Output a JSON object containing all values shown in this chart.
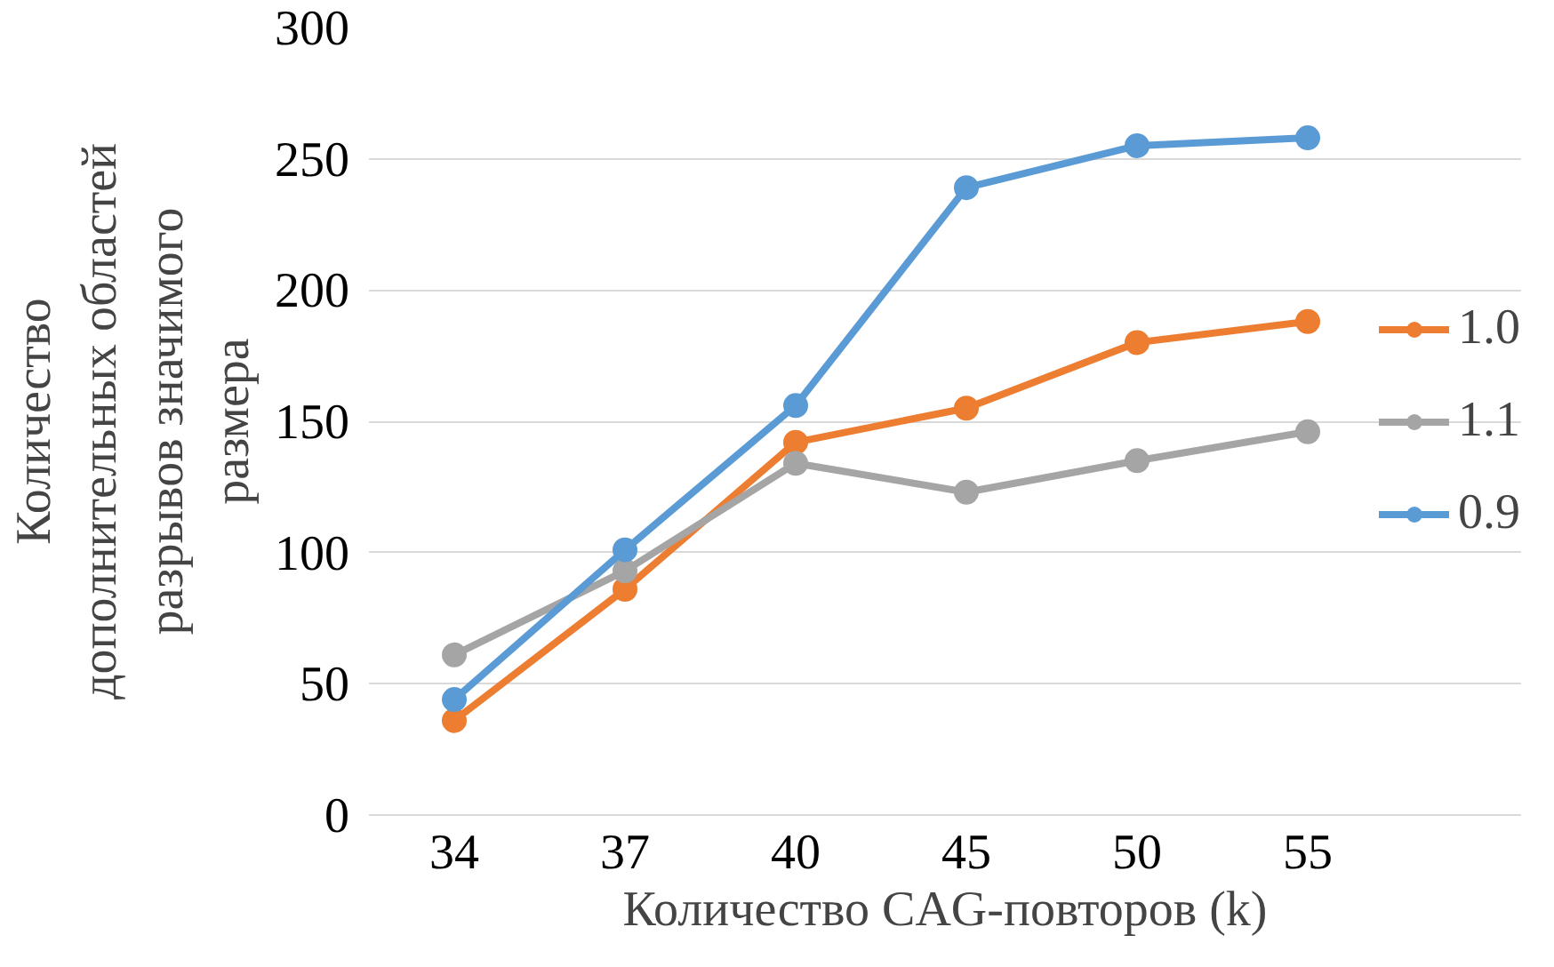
{
  "chart_data": {
    "type": "line",
    "xlabel": "Количество CAG-повторов (k)",
    "ylabel": "Количество\nдополнительных областей\nразрывов значимого\nразмера",
    "categories": [
      "34",
      "37",
      "40",
      "45",
      "50",
      "55"
    ],
    "series": [
      {
        "name": "1.0",
        "color": "#ed7d31",
        "values": [
          36,
          86,
          142,
          155,
          180,
          188
        ]
      },
      {
        "name": "1.1",
        "color": "#a5a5a5",
        "values": [
          61,
          93,
          134,
          123,
          135,
          146
        ]
      },
      {
        "name": "0.9",
        "color": "#5b9bd5",
        "values": [
          44,
          101,
          156,
          239,
          255,
          258
        ]
      }
    ],
    "ylim": [
      0,
      300
    ],
    "yticks": [
      0,
      50,
      100,
      150,
      200,
      250,
      300
    ],
    "grid": "y",
    "legend": "right",
    "marker": "circle",
    "line_style": "solid"
  }
}
